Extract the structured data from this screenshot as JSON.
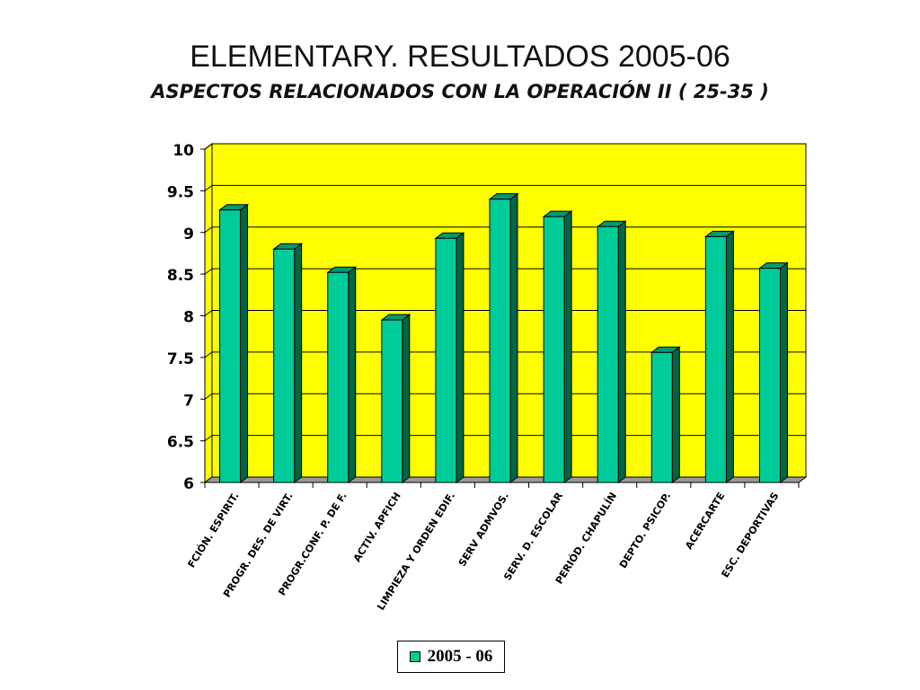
{
  "chart_data": {
    "type": "bar",
    "title": "ELEMENTARY. RESULTADOS 2005-06",
    "subtitle": "ASPECTOS RELACIONADOS CON LA OPERACIÓN  II ( 25-35 )",
    "categories": [
      "FCIÓN. ESPIRIT.",
      "PROGR. DES. DE VIRT.",
      "PROGR.CONF. P. DE F.",
      "ACTIV. APFICH",
      "LIMPIEZA Y ORDEN EDIF.",
      "SERV ADMVOS.",
      "SERV. D. ESCOLAR",
      "PERIÓD. CHAPULÍN",
      "DEPTO. PSICOP.",
      "ACERCARTE",
      "ESC. DEPORTIVAS"
    ],
    "series": [
      {
        "name": "2005 - 06",
        "values": [
          9.27,
          8.8,
          8.52,
          7.95,
          8.93,
          9.4,
          9.19,
          9.07,
          7.56,
          8.95,
          8.57
        ]
      }
    ],
    "yticks": [
      "10",
      "9.5",
      "9",
      "8.5",
      "8",
      "7.5",
      "7",
      "6.5",
      "6"
    ],
    "ylim": [
      6,
      10
    ],
    "grid": true,
    "legend_position": "bottom-center",
    "style": "3d-bar"
  },
  "colors": {
    "plot_background": "#ffff00",
    "bar_front": "#00cc99",
    "bar_side": "#006644",
    "bar_top": "#009973",
    "floor": "#999999",
    "grid": "#000000"
  }
}
